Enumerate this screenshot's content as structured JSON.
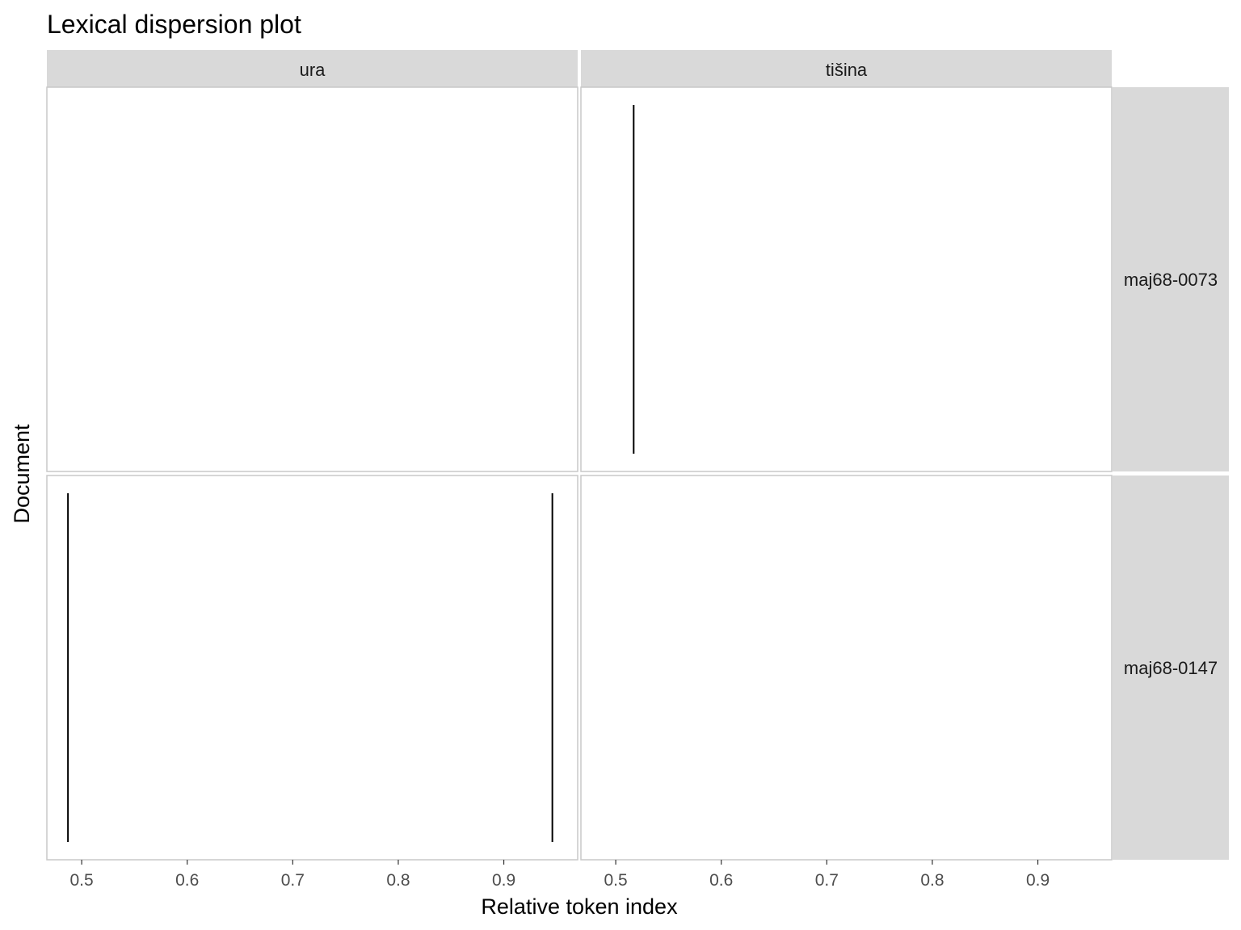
{
  "chart_data": {
    "type": "dispersion",
    "title": "Lexical dispersion plot",
    "xlabel": "Relative token index",
    "ylabel": "Document",
    "xlim": [
      0.467,
      0.97
    ],
    "x_ticks": [
      0.5,
      0.6,
      0.7,
      0.8,
      0.9
    ],
    "x_tick_labels": [
      "0.5",
      "0.6",
      "0.7",
      "0.8",
      "0.9"
    ],
    "columns": [
      "ura",
      "tišina"
    ],
    "rows": [
      "maj68-0073",
      "maj68-0147"
    ],
    "panels": [
      {
        "row": "maj68-0073",
        "column": "ura",
        "x": []
      },
      {
        "row": "maj68-0073",
        "column": "tišina",
        "x": [
          0.517
        ]
      },
      {
        "row": "maj68-0147",
        "column": "ura",
        "x": [
          0.487,
          0.946
        ]
      },
      {
        "row": "maj68-0147",
        "column": "tišina",
        "x": []
      }
    ],
    "colors": {
      "strip": "#d9d9d9",
      "panel_border": "#c8c8c8",
      "mark": "#000000"
    }
  }
}
